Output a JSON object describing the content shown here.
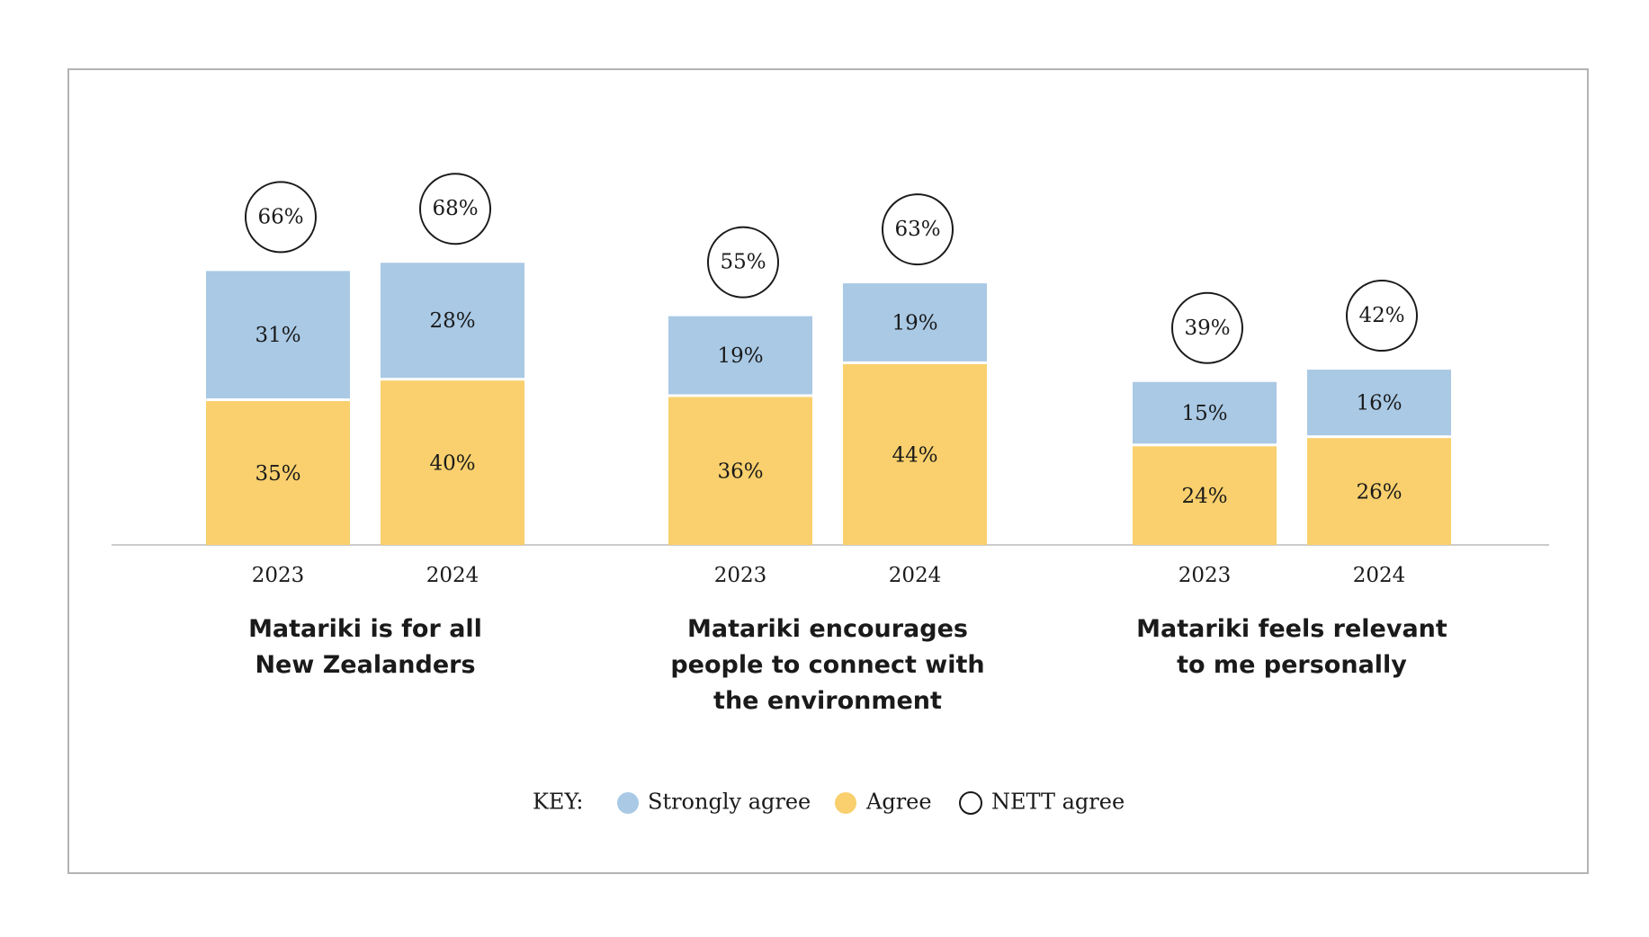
{
  "chart_data": {
    "type": "bar",
    "stacked": true,
    "groups": [
      {
        "title_lines": [
          "Matariki is for all",
          "New Zealanders"
        ],
        "bars": [
          {
            "year": "2023",
            "agree": 35,
            "strongly_agree": 31,
            "nett": 66,
            "agree_label": "35%",
            "strongly_label": "31%",
            "nett_label": "66%"
          },
          {
            "year": "2024",
            "agree": 40,
            "strongly_agree": 28,
            "nett": 68,
            "agree_label": "40%",
            "strongly_label": "28%",
            "nett_label": "68%"
          }
        ]
      },
      {
        "title_lines": [
          "Matariki encourages",
          "people to connect with",
          "the environment"
        ],
        "bars": [
          {
            "year": "2023",
            "agree": 36,
            "strongly_agree": 19,
            "nett": 55,
            "agree_label": "36%",
            "strongly_label": "19%",
            "nett_label": "55%"
          },
          {
            "year": "2024",
            "agree": 44,
            "strongly_agree": 19,
            "nett": 63,
            "agree_label": "44%",
            "strongly_label": "19%",
            "nett_label": "63%"
          }
        ]
      },
      {
        "title_lines": [
          "Matariki feels relevant",
          "to me personally"
        ],
        "bars": [
          {
            "year": "2023",
            "agree": 24,
            "strongly_agree": 15,
            "nett": 39,
            "agree_label": "24%",
            "strongly_label": "15%",
            "nett_label": "39%"
          },
          {
            "year": "2024",
            "agree": 26,
            "strongly_agree": 16,
            "nett": 42,
            "agree_label": "26%",
            "strongly_label": "16%",
            "nett_label": "42%"
          }
        ]
      }
    ],
    "series": [
      {
        "name": "Strongly agree",
        "color": "#a9c9e5"
      },
      {
        "name": "Agree",
        "color": "#f9d06d"
      },
      {
        "name": "NETT agree",
        "color": "#ffffff"
      }
    ],
    "ylim": [
      0,
      80
    ],
    "grid": false,
    "legend_position": "bottom-center"
  },
  "key": {
    "label": "KEY:",
    "items": [
      "Strongly agree",
      "Agree",
      "NETT agree"
    ]
  },
  "colors": {
    "strongly_agree": "#a9c9e5",
    "agree": "#f9d06d",
    "axis": "#cccccc",
    "frame": "#b3b3b3",
    "text": "#1a1a1a"
  }
}
